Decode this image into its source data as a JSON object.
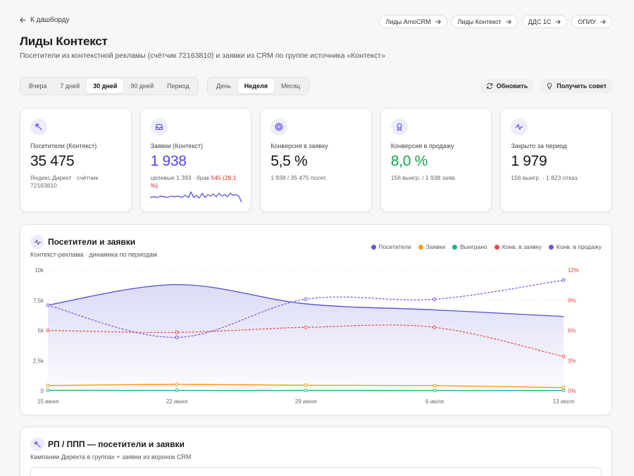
{
  "nav": {
    "back_label": "К дашборду"
  },
  "quick_links": [
    "Лиды AmoCRM",
    "Лиды Контекст",
    "ДДС 1С",
    "ОПИУ"
  ],
  "page": {
    "title": "Лиды Контекст",
    "subtitle": "Посетители из контекстной рекламы (счётчик 72163810) и заявки из CRM по группе источника «Контекст»"
  },
  "range_options": [
    "Вчера",
    "7 дней",
    "30 дней",
    "90 дней",
    "Период"
  ],
  "range_selected": "30 дней",
  "granularity_options": [
    "День",
    "Неделя",
    "Месяц"
  ],
  "granularity_selected": "Неделя",
  "actions": {
    "refresh": "Обновить",
    "advice": "Получить совет"
  },
  "kpis": [
    {
      "icon": "sparkle-icon",
      "label": "Посетители (Контекст)",
      "value": "35 475",
      "note": "Яндекс.Директ · счётчик 72163810",
      "color": "default"
    },
    {
      "icon": "inbox-icon",
      "label": "Заявки (Контекст)",
      "value": "1 938",
      "note_prefix": "целевые 1 393 · брак ",
      "note_red": "545 (28,1 %)",
      "color": "blue"
    },
    {
      "icon": "target-icon",
      "label": "Конверсия в заявку",
      "value": "5,5 %",
      "note": "1 938 / 35 475 посет.",
      "color": "default"
    },
    {
      "icon": "award-icon",
      "label": "Конверсия в продажу",
      "value": "8,0 %",
      "note": "156 выигр. / 1 938 заяв.",
      "color": "green"
    },
    {
      "icon": "pulse-icon",
      "label": "Закрыто за период",
      "value": "1 979",
      "note": "156 выигр. · 1 823 отказ.",
      "color": "default"
    }
  ],
  "colors": {
    "visitors": "#5b5bd6",
    "leads": "#f59e0b",
    "won": "#10b981",
    "conv_lead": "#ef4444",
    "conv_sale": "#7c4ddb",
    "accent": "#4f46e5"
  },
  "chart_panel": {
    "title": "Посетители и заявки",
    "subtitle": "Контекст-реклама · динамика по периодам",
    "legend": [
      "Посетители",
      "Заявки",
      "Выиграно",
      "Конв. в заявку",
      "Конв. в продажу"
    ]
  },
  "chart_data": {
    "type": "line",
    "x": [
      "15 июня",
      "22 июня",
      "29 июня",
      "6 июля",
      "13 июля"
    ],
    "y_left_ticks": [
      "0",
      "2,5k",
      "5k",
      "7,5k",
      "10k"
    ],
    "y_right_ticks": [
      "0%",
      "3%",
      "6%",
      "9%",
      "12%"
    ],
    "ylim_left": [
      0,
      10000
    ],
    "ylim_right": [
      0,
      12
    ],
    "series": [
      {
        "name": "Посетители",
        "axis": "left",
        "style": "area",
        "values": [
          7100,
          8800,
          7200,
          6700,
          6150
        ]
      },
      {
        "name": "Заявки",
        "axis": "left",
        "style": "line",
        "values": [
          430,
          520,
          450,
          420,
          250
        ]
      },
      {
        "name": "Выиграно",
        "axis": "left",
        "style": "line",
        "values": [
          30,
          20,
          20,
          10,
          20
        ]
      },
      {
        "name": "Конв. в заявку",
        "axis": "right",
        "style": "dashed",
        "values": [
          6.0,
          5.8,
          6.3,
          6.3,
          3.4
        ]
      },
      {
        "name": "Конв. в продажу",
        "axis": "right",
        "style": "dashed",
        "values": [
          8.5,
          5.3,
          9.1,
          9.1,
          11.0
        ]
      }
    ]
  },
  "panel2": {
    "title": "РП / ППП — посетители и заявки",
    "subtitle": "Кампании Директа в группах + заявки из воронок CRM"
  }
}
